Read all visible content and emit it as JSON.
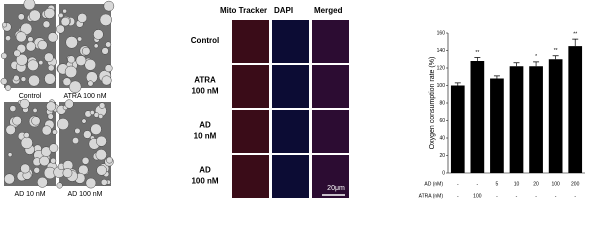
{
  "micrographs": {
    "panels": [
      {
        "label": "Control"
      },
      {
        "label": "ATRA 100 nM"
      },
      {
        "label": "AD 10 nM"
      },
      {
        "label": "AD 100 nM"
      }
    ]
  },
  "fluorescence": {
    "columns": [
      "Mito Tracker",
      "DAPI",
      "Merged"
    ],
    "rows": [
      {
        "label": [
          "Control"
        ]
      },
      {
        "label": [
          "ATRA",
          "100 nM"
        ]
      },
      {
        "label": [
          "AD",
          "10 nM"
        ]
      },
      {
        "label": [
          "AD",
          "100 nM"
        ]
      }
    ],
    "scale_bar": "20μm"
  },
  "chart_data": {
    "type": "bar",
    "y_label": "Oxygen consumption rate (%)",
    "values": [
      100,
      128,
      108,
      122,
      122,
      130,
      145
    ],
    "errors": [
      3,
      4,
      3,
      4,
      5,
      4,
      8
    ],
    "annotations": [
      null,
      "**",
      null,
      null,
      "*",
      "**",
      "**"
    ],
    "color": "#000000",
    "ylim": [
      0,
      160
    ],
    "yticks": [
      0,
      20,
      40,
      60,
      80,
      100,
      120,
      140,
      160
    ],
    "x_table": {
      "rows": [
        {
          "label": "AD (nM)",
          "cells": [
            "-",
            "-",
            "5",
            "10",
            "20",
            "100",
            "200"
          ]
        },
        {
          "label": "ATRA (nM)",
          "cells": [
            "-",
            "100",
            "-",
            "-",
            "-",
            "-",
            "-"
          ]
        }
      ]
    }
  }
}
